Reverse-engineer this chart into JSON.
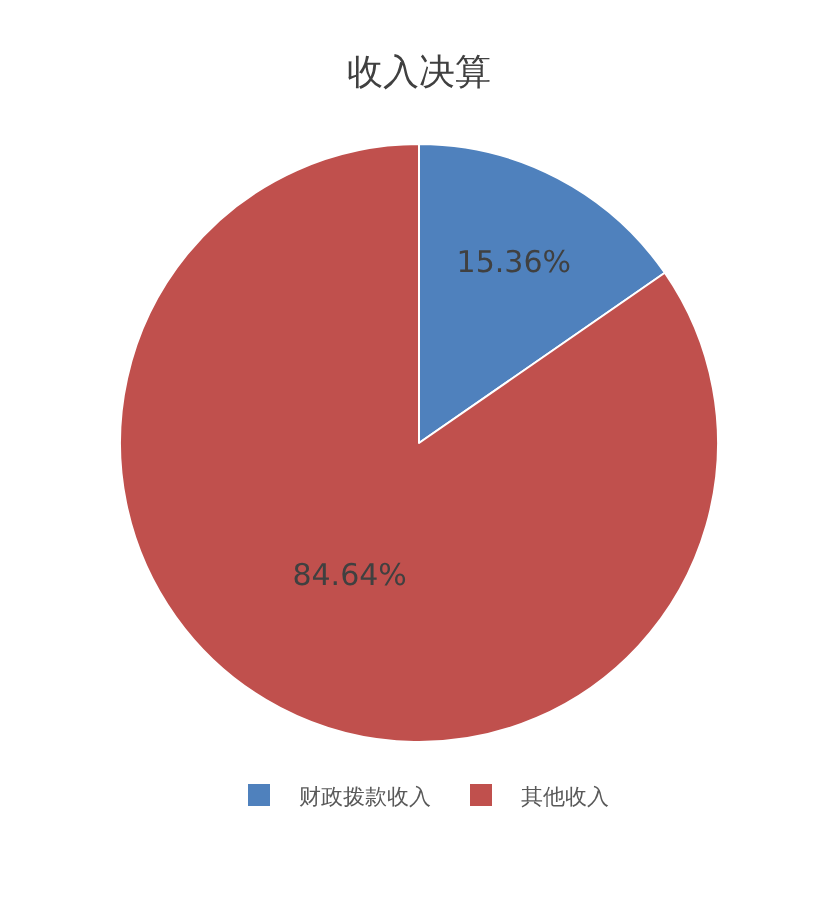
{
  "chart_data": {
    "type": "pie",
    "title": "收入决算",
    "categories": [
      "财政拨款收入",
      "其他收入"
    ],
    "values": [
      15.36,
      84.64
    ],
    "colors": [
      "#4f81bd",
      "#c0504d"
    ],
    "value_labels": [
      "15.36%",
      "84.64%"
    ],
    "legend": "bottom"
  }
}
